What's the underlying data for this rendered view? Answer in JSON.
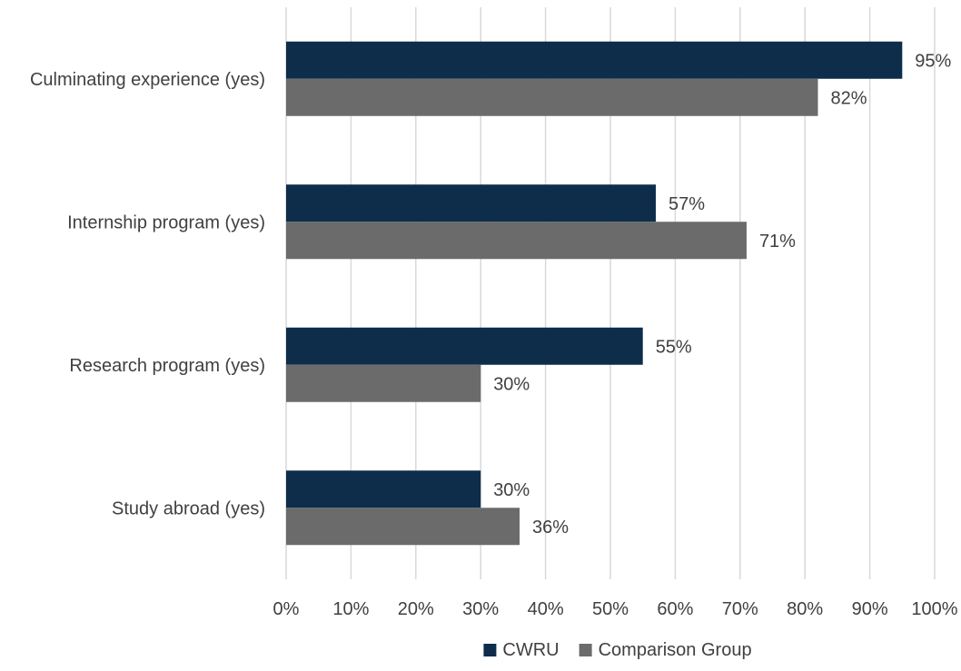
{
  "chart_data": {
    "type": "bar",
    "orientation": "horizontal",
    "categories": [
      "Culminating experience (yes)",
      "Internship program (yes)",
      "Research program (yes)",
      "Study abroad (yes)"
    ],
    "series": [
      {
        "name": "CWRU",
        "color": "#0d2d4b",
        "values": [
          95,
          57,
          55,
          30
        ],
        "labels": [
          "95%",
          "57%",
          "55%",
          "30%"
        ]
      },
      {
        "name": "Comparison Group",
        "color": "#6b6b6b",
        "values": [
          82,
          71,
          30,
          36
        ],
        "labels": [
          "82%",
          "71%",
          "30%",
          "36%"
        ]
      }
    ],
    "xlim": [
      0,
      100
    ],
    "xticks": [
      0,
      10,
      20,
      30,
      40,
      50,
      60,
      70,
      80,
      90,
      100
    ],
    "xtick_labels": [
      "0%",
      "10%",
      "20%",
      "30%",
      "40%",
      "50%",
      "60%",
      "70%",
      "80%",
      "90%",
      "100%"
    ],
    "grid": true,
    "legend": "bottom"
  }
}
